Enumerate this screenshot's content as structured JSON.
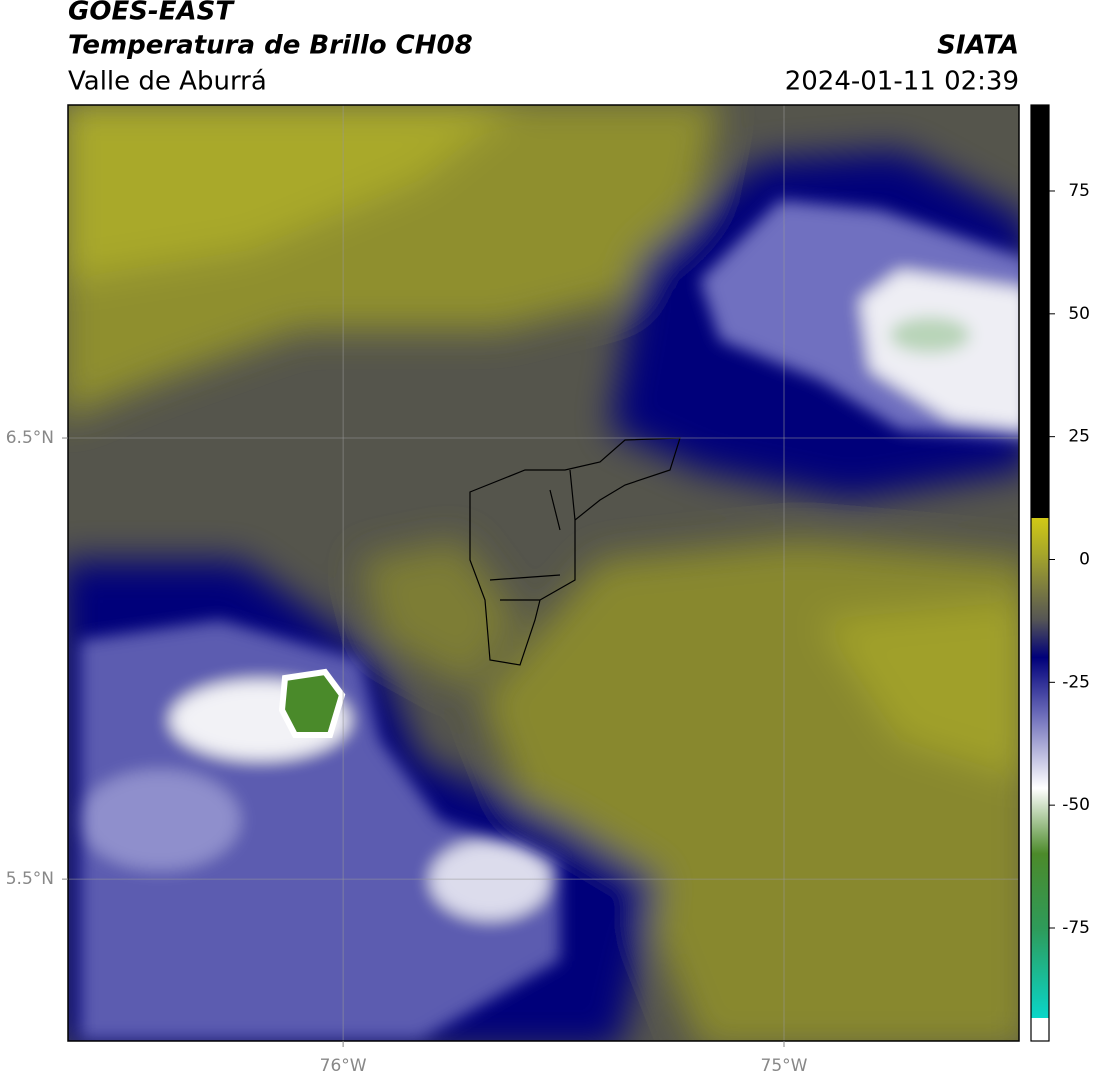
{
  "header": {
    "title": "GOES-EAST",
    "subtitle": "Temperatura de Brillo CH08",
    "region": "Valle de Aburrá",
    "source": "SIATA",
    "datetime": "2024-01-11 02:39"
  },
  "map": {
    "lon_range": [
      -76.624,
      -74.467
    ],
    "lat_range": [
      5.133,
      7.255
    ],
    "lon_ticks": [
      {
        "value": -76,
        "label": "76°W"
      },
      {
        "value": -75,
        "label": "75°W"
      }
    ],
    "lat_ticks": [
      {
        "value": 6.5,
        "label": "6.5°N"
      },
      {
        "value": 5.5,
        "label": "5.5°N"
      }
    ]
  },
  "colorbar": {
    "range": [
      -98,
      92.5
    ],
    "ticks": [
      75,
      50,
      25,
      0,
      -25,
      -50,
      -75
    ]
  }
}
